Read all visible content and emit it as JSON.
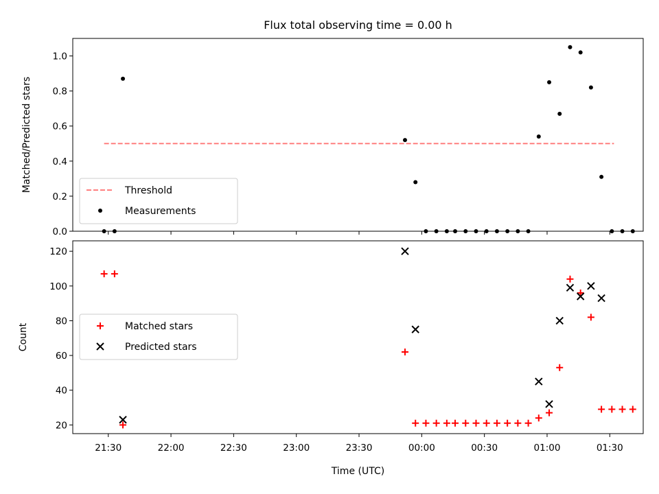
{
  "chart_data": [
    {
      "type": "scatter",
      "title": "Flux total observing time = 0.00 h",
      "xlabel": "",
      "ylabel": "Matched/Predicted stars",
      "ylim": [
        0,
        1.1
      ],
      "yticks": [
        {
          "v": 0.0,
          "label": "0.0"
        },
        {
          "v": 0.2,
          "label": "0.2"
        },
        {
          "v": 0.4,
          "label": "0.4"
        },
        {
          "v": 0.6,
          "label": "0.6"
        },
        {
          "v": 0.8,
          "label": "0.8"
        },
        {
          "v": 1.0,
          "label": "1.0"
        }
      ],
      "xlim": [
        "21:13",
        "01:46"
      ],
      "legend_position": "lower-left",
      "series": [
        {
          "name": "Threshold",
          "kind": "line",
          "style": "dashed",
          "color": "#ff7f7f",
          "points": [
            {
              "x": "21:28",
              "y": 0.5
            },
            {
              "x": "01:32",
              "y": 0.5
            }
          ]
        },
        {
          "name": "Measurements",
          "kind": "scatter",
          "marker": "dot",
          "color": "#000000",
          "points": [
            {
              "x": "21:28",
              "y": 0.0
            },
            {
              "x": "21:33",
              "y": 0.0
            },
            {
              "x": "21:37",
              "y": 0.87
            },
            {
              "x": "23:52",
              "y": 0.52
            },
            {
              "x": "23:57",
              "y": 0.28
            },
            {
              "x": "00:02",
              "y": 0.0
            },
            {
              "x": "00:07",
              "y": 0.0
            },
            {
              "x": "00:12",
              "y": 0.0
            },
            {
              "x": "00:16",
              "y": 0.0
            },
            {
              "x": "00:21",
              "y": 0.0
            },
            {
              "x": "00:26",
              "y": 0.0
            },
            {
              "x": "00:31",
              "y": 0.0
            },
            {
              "x": "00:36",
              "y": 0.0
            },
            {
              "x": "00:41",
              "y": 0.0
            },
            {
              "x": "00:46",
              "y": 0.0
            },
            {
              "x": "00:51",
              "y": 0.0
            },
            {
              "x": "00:56",
              "y": 0.54
            },
            {
              "x": "01:01",
              "y": 0.85
            },
            {
              "x": "01:06",
              "y": 0.67
            },
            {
              "x": "01:11",
              "y": 1.05
            },
            {
              "x": "01:16",
              "y": 1.02
            },
            {
              "x": "01:21",
              "y": 0.82
            },
            {
              "x": "01:26",
              "y": 0.31
            },
            {
              "x": "01:31",
              "y": 0.0
            },
            {
              "x": "01:36",
              "y": 0.0
            },
            {
              "x": "01:41",
              "y": 0.0
            }
          ]
        }
      ]
    },
    {
      "type": "scatter",
      "title": "",
      "xlabel": "Time (UTC)",
      "ylabel": "Count",
      "ylim": [
        15,
        126
      ],
      "yticks": [
        {
          "v": 20,
          "label": "20"
        },
        {
          "v": 40,
          "label": "40"
        },
        {
          "v": 60,
          "label": "60"
        },
        {
          "v": 80,
          "label": "80"
        },
        {
          "v": 100,
          "label": "100"
        },
        {
          "v": 120,
          "label": "120"
        }
      ],
      "xlim": [
        "21:13",
        "01:46"
      ],
      "xticks": [
        {
          "v": "21:30",
          "label": "21:30"
        },
        {
          "v": "22:00",
          "label": "22:00"
        },
        {
          "v": "22:30",
          "label": "22:30"
        },
        {
          "v": "23:00",
          "label": "23:00"
        },
        {
          "v": "23:30",
          "label": "23:30"
        },
        {
          "v": "00:00",
          "label": "00:00"
        },
        {
          "v": "00:30",
          "label": "00:30"
        },
        {
          "v": "01:00",
          "label": "01:00"
        },
        {
          "v": "01:30",
          "label": "01:30"
        }
      ],
      "legend_position": "center-left",
      "series": [
        {
          "name": "Matched stars",
          "kind": "scatter",
          "marker": "plus",
          "color": "#ff0000",
          "points": [
            {
              "x": "21:28",
              "y": 107
            },
            {
              "x": "21:33",
              "y": 107
            },
            {
              "x": "21:37",
              "y": 20
            },
            {
              "x": "23:52",
              "y": 62
            },
            {
              "x": "23:57",
              "y": 21
            },
            {
              "x": "00:02",
              "y": 21
            },
            {
              "x": "00:07",
              "y": 21
            },
            {
              "x": "00:12",
              "y": 21
            },
            {
              "x": "00:16",
              "y": 21
            },
            {
              "x": "00:21",
              "y": 21
            },
            {
              "x": "00:26",
              "y": 21
            },
            {
              "x": "00:31",
              "y": 21
            },
            {
              "x": "00:36",
              "y": 21
            },
            {
              "x": "00:41",
              "y": 21
            },
            {
              "x": "00:46",
              "y": 21
            },
            {
              "x": "00:51",
              "y": 21
            },
            {
              "x": "00:56",
              "y": 24
            },
            {
              "x": "01:01",
              "y": 27
            },
            {
              "x": "01:06",
              "y": 53
            },
            {
              "x": "01:11",
              "y": 104
            },
            {
              "x": "01:16",
              "y": 96
            },
            {
              "x": "01:21",
              "y": 82
            },
            {
              "x": "01:26",
              "y": 29
            },
            {
              "x": "01:31",
              "y": 29
            },
            {
              "x": "01:36",
              "y": 29
            },
            {
              "x": "01:41",
              "y": 29
            }
          ]
        },
        {
          "name": "Predicted stars",
          "kind": "scatter",
          "marker": "x",
          "color": "#000000",
          "points": [
            {
              "x": "21:37",
              "y": 23
            },
            {
              "x": "23:52",
              "y": 120
            },
            {
              "x": "23:57",
              "y": 75
            },
            {
              "x": "00:56",
              "y": 45
            },
            {
              "x": "01:01",
              "y": 32
            },
            {
              "x": "01:06",
              "y": 80
            },
            {
              "x": "01:11",
              "y": 99
            },
            {
              "x": "01:16",
              "y": 94
            },
            {
              "x": "01:21",
              "y": 100
            },
            {
              "x": "01:26",
              "y": 93
            }
          ]
        }
      ]
    }
  ]
}
